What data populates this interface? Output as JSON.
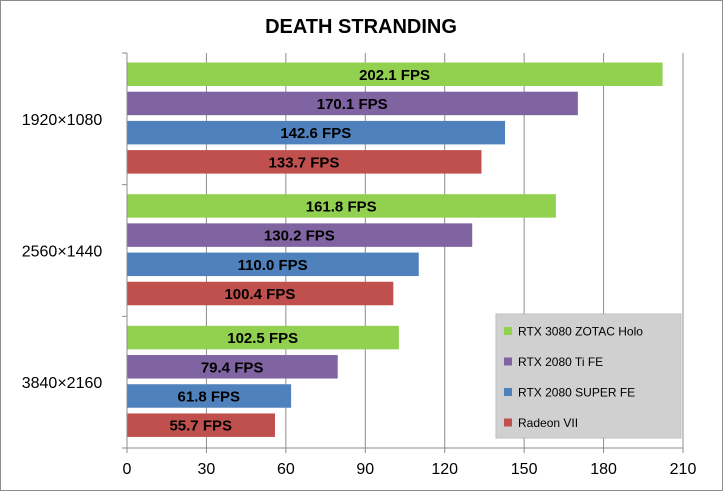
{
  "chart_data": {
    "type": "bar",
    "orientation": "horizontal",
    "title": "DEATH STRANDING",
    "categories": [
      "1920×1080",
      "2560×1440",
      "3840×2160"
    ],
    "series": [
      {
        "name": "RTX 3080 ZOTAC Holo",
        "color": "#92d050",
        "values": [
          202.1,
          161.8,
          102.5
        ],
        "labels": [
          "202.1 FPS",
          "161.8 FPS",
          "102.5 FPS"
        ]
      },
      {
        "name": "RTX 2080 Ti FE",
        "color": "#8064a2",
        "values": [
          170.1,
          130.2,
          79.4
        ],
        "labels": [
          "170.1 FPS",
          "130.2 FPS",
          "79.4 FPS"
        ]
      },
      {
        "name": "RTX 2080 SUPER FE",
        "color": "#4f81bd",
        "values": [
          142.6,
          110.0,
          61.8
        ],
        "labels": [
          "142.6 FPS",
          "110.0 FPS",
          "61.8 FPS"
        ]
      },
      {
        "name": "Radeon VII",
        "color": "#c0504d",
        "values": [
          133.7,
          100.4,
          55.7
        ],
        "labels": [
          "133.7 FPS",
          "100.4 FPS",
          "55.7 FPS"
        ]
      }
    ],
    "xlim": [
      0,
      210
    ],
    "xticks": [
      "0",
      "30",
      "60",
      "90",
      "120",
      "150",
      "180",
      "210"
    ],
    "grid": true,
    "legend_position": "bottom-right"
  }
}
